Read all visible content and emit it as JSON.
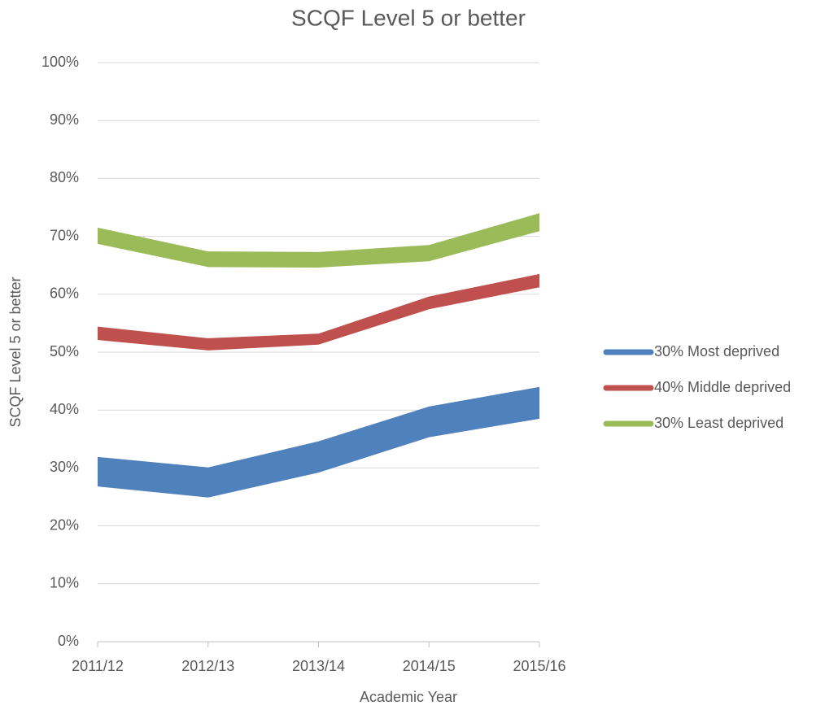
{
  "chart_data": {
    "type": "band",
    "title": "SCQF Level 5 or better",
    "x_label": "Academic Year",
    "y_label": "SCQF Level 5 or better",
    "categories": [
      "2011/12",
      "2012/13",
      "2013/14",
      "2014/15",
      "2015/16"
    ],
    "series": [
      {
        "name": "30% Most deprived",
        "color": "#4f81bd",
        "low": [
          26.8,
          24.9,
          29.2,
          35.3,
          38.5
        ],
        "high": [
          31.9,
          30.1,
          34.6,
          40.6,
          44.0
        ]
      },
      {
        "name": "40% Middle deprived",
        "color": "#c0504d",
        "low": [
          52.1,
          50.3,
          51.3,
          57.4,
          61.2
        ],
        "high": [
          54.4,
          52.4,
          53.2,
          59.6,
          63.5
        ]
      },
      {
        "name": "30% Least deprived",
        "color": "#9bbb59",
        "low": [
          68.7,
          64.7,
          64.6,
          65.7,
          70.9
        ],
        "high": [
          71.5,
          67.4,
          67.3,
          68.5,
          74.0
        ]
      }
    ],
    "ylim": [
      0,
      100
    ],
    "yticks": [
      {
        "value": 0,
        "label": "0%"
      },
      {
        "value": 10,
        "label": "10%"
      },
      {
        "value": 20,
        "label": "20%"
      },
      {
        "value": 30,
        "label": "30%"
      },
      {
        "value": 40,
        "label": "40%"
      },
      {
        "value": 50,
        "label": "50%"
      },
      {
        "value": 60,
        "label": "60%"
      },
      {
        "value": 70,
        "label": "70%"
      },
      {
        "value": 80,
        "label": "80%"
      },
      {
        "value": 90,
        "label": "90%"
      },
      {
        "value": 100,
        "label": "100%"
      }
    ],
    "grid": true,
    "legend": "right"
  }
}
